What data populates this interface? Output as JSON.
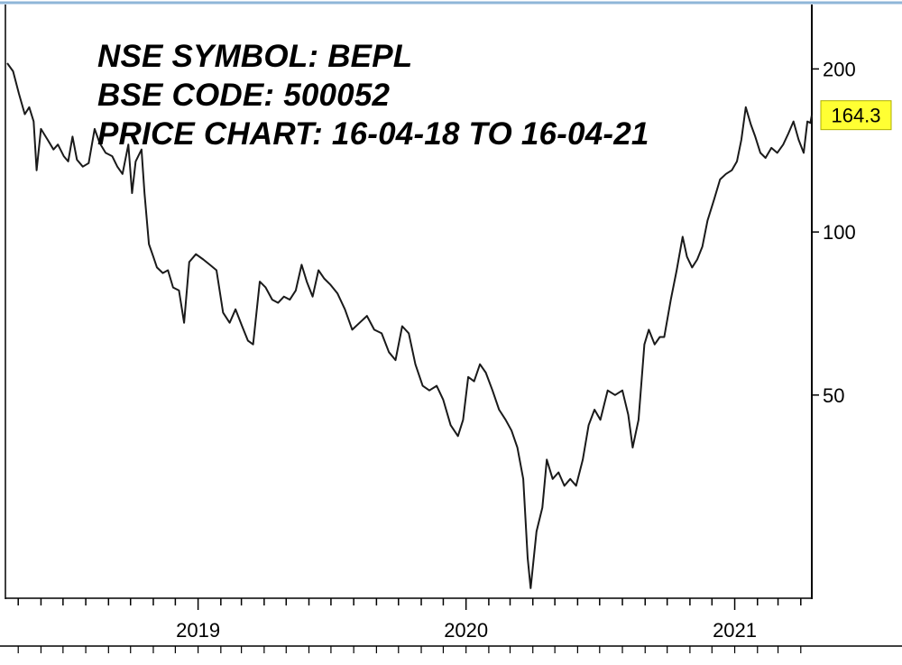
{
  "chart_data": {
    "type": "line",
    "title": "",
    "xlabel": "",
    "ylabel": "",
    "y_scale": "log",
    "ylim": [
      21,
      260
    ],
    "xlim": [
      "2018-04-16",
      "2021-04-16"
    ],
    "y_ticks": [
      50,
      100,
      200
    ],
    "y_tick_labels": [
      "50",
      "100",
      "200"
    ],
    "x_ticks": [
      "2019-01-01",
      "2020-01-01",
      "2021-01-01"
    ],
    "x_tick_labels": [
      "2019",
      "2020",
      "2021"
    ],
    "grid": false,
    "last_value_label": "164.3",
    "annotations": [
      "NSE SYMBOL: BEPL",
      "BSE CODE: 500052",
      "PRICE CHART: 16-04-18 TO 16-04-21"
    ],
    "series": [
      {
        "values": [
          [
            "2018-04-16",
            205
          ],
          [
            "2018-04-24",
            198
          ],
          [
            "2018-05-02",
            180
          ],
          [
            "2018-05-10",
            165
          ],
          [
            "2018-05-16",
            170
          ],
          [
            "2018-05-22",
            160
          ],
          [
            "2018-05-26",
            130
          ],
          [
            "2018-06-01",
            155
          ],
          [
            "2018-06-10",
            148
          ],
          [
            "2018-06-18",
            142
          ],
          [
            "2018-06-24",
            145
          ],
          [
            "2018-07-02",
            138
          ],
          [
            "2018-07-08",
            135
          ],
          [
            "2018-07-14",
            150
          ],
          [
            "2018-07-20",
            136
          ],
          [
            "2018-07-28",
            132
          ],
          [
            "2018-08-05",
            134
          ],
          [
            "2018-08-13",
            155
          ],
          [
            "2018-08-20",
            146
          ],
          [
            "2018-08-28",
            140
          ],
          [
            "2018-09-06",
            138
          ],
          [
            "2018-09-13",
            132
          ],
          [
            "2018-09-20",
            128
          ],
          [
            "2018-09-28",
            145
          ],
          [
            "2018-10-03",
            118
          ],
          [
            "2018-10-08",
            135
          ],
          [
            "2018-10-16",
            142
          ],
          [
            "2018-10-20",
            118
          ],
          [
            "2018-10-26",
            95
          ],
          [
            "2018-11-01",
            90
          ],
          [
            "2018-11-06",
            86
          ],
          [
            "2018-11-14",
            84
          ],
          [
            "2018-11-21",
            85
          ],
          [
            "2018-11-28",
            79
          ],
          [
            "2018-12-06",
            78
          ],
          [
            "2018-12-13",
            68
          ],
          [
            "2018-12-20",
            88
          ],
          [
            "2018-12-29",
            91
          ],
          [
            "2019-01-08",
            89
          ],
          [
            "2019-01-17",
            87
          ],
          [
            "2019-01-26",
            85
          ],
          [
            "2019-02-04",
            71
          ],
          [
            "2019-02-13",
            68
          ],
          [
            "2019-02-21",
            72
          ],
          [
            "2019-03-02",
            67
          ],
          [
            "2019-03-10",
            63
          ],
          [
            "2019-03-17",
            62
          ],
          [
            "2019-03-26",
            81
          ],
          [
            "2019-04-03",
            79
          ],
          [
            "2019-04-12",
            75
          ],
          [
            "2019-04-20",
            74
          ],
          [
            "2019-04-28",
            76
          ],
          [
            "2019-05-06",
            75
          ],
          [
            "2019-05-14",
            78
          ],
          [
            "2019-05-22",
            87
          ],
          [
            "2019-05-29",
            81
          ],
          [
            "2019-06-06",
            76
          ],
          [
            "2019-06-14",
            85
          ],
          [
            "2019-06-22",
            82
          ],
          [
            "2019-06-30",
            80
          ],
          [
            "2019-07-10",
            77
          ],
          [
            "2019-07-20",
            72
          ],
          [
            "2019-07-30",
            66
          ],
          [
            "2019-08-09",
            68
          ],
          [
            "2019-08-19",
            70
          ],
          [
            "2019-08-29",
            66
          ],
          [
            "2019-09-08",
            65
          ],
          [
            "2019-09-18",
            60
          ],
          [
            "2019-09-27",
            58
          ],
          [
            "2019-10-06",
            67
          ],
          [
            "2019-10-15",
            65
          ],
          [
            "2019-10-24",
            57
          ],
          [
            "2019-11-03",
            52
          ],
          [
            "2019-11-12",
            51
          ],
          [
            "2019-11-22",
            52
          ],
          [
            "2019-12-01",
            49
          ],
          [
            "2019-12-11",
            44
          ],
          [
            "2019-12-21",
            42
          ],
          [
            "2019-12-28",
            45
          ],
          [
            "2020-01-04",
            54
          ],
          [
            "2020-01-12",
            53
          ],
          [
            "2020-01-20",
            57
          ],
          [
            "2020-01-28",
            55
          ],
          [
            "2020-02-06",
            51
          ],
          [
            "2020-02-15",
            47
          ],
          [
            "2020-02-24",
            45
          ],
          [
            "2020-03-03",
            43
          ],
          [
            "2020-03-11",
            40
          ],
          [
            "2020-03-19",
            35
          ],
          [
            "2020-03-25",
            25
          ],
          [
            "2020-03-29",
            22
          ],
          [
            "2020-04-06",
            28
          ],
          [
            "2020-04-14",
            31
          ],
          [
            "2020-04-20",
            38
          ],
          [
            "2020-04-28",
            35
          ],
          [
            "2020-05-06",
            36
          ],
          [
            "2020-05-14",
            34
          ],
          [
            "2020-05-22",
            35
          ],
          [
            "2020-05-30",
            34
          ],
          [
            "2020-06-08",
            38
          ],
          [
            "2020-06-16",
            44
          ],
          [
            "2020-06-24",
            47
          ],
          [
            "2020-07-02",
            45
          ],
          [
            "2020-07-12",
            51
          ],
          [
            "2020-07-22",
            50
          ],
          [
            "2020-08-01",
            51
          ],
          [
            "2020-08-09",
            46
          ],
          [
            "2020-08-15",
            40
          ],
          [
            "2020-08-23",
            45
          ],
          [
            "2020-08-31",
            62
          ],
          [
            "2020-09-06",
            66
          ],
          [
            "2020-09-14",
            62
          ],
          [
            "2020-09-21",
            64
          ],
          [
            "2020-09-27",
            64
          ],
          [
            "2020-10-06",
            75
          ],
          [
            "2020-10-14",
            85
          ],
          [
            "2020-10-22",
            98
          ],
          [
            "2020-10-28",
            90
          ],
          [
            "2020-11-04",
            86
          ],
          [
            "2020-11-11",
            89
          ],
          [
            "2020-11-18",
            94
          ],
          [
            "2020-11-25",
            105
          ],
          [
            "2020-12-04",
            115
          ],
          [
            "2020-12-12",
            125
          ],
          [
            "2020-12-20",
            128
          ],
          [
            "2020-12-28",
            130
          ],
          [
            "2021-01-04",
            135
          ],
          [
            "2021-01-10",
            148
          ],
          [
            "2021-01-16",
            170
          ],
          [
            "2021-01-23",
            158
          ],
          [
            "2021-01-29",
            150
          ],
          [
            "2021-02-05",
            140
          ],
          [
            "2021-02-12",
            137
          ],
          [
            "2021-02-20",
            143
          ],
          [
            "2021-02-28",
            140
          ],
          [
            "2021-03-08",
            145
          ],
          [
            "2021-03-15",
            152
          ],
          [
            "2021-03-22",
            160
          ],
          [
            "2021-03-29",
            148
          ],
          [
            "2021-04-05",
            140
          ],
          [
            "2021-04-10",
            160
          ],
          [
            "2021-04-14",
            159
          ],
          [
            "2021-04-16",
            164.3
          ]
        ]
      }
    ]
  },
  "colors": {
    "line": "#1a1a1a",
    "axis": "#000000",
    "top_border": "#8fb6d8",
    "last_value_bg": "#ffff33"
  }
}
